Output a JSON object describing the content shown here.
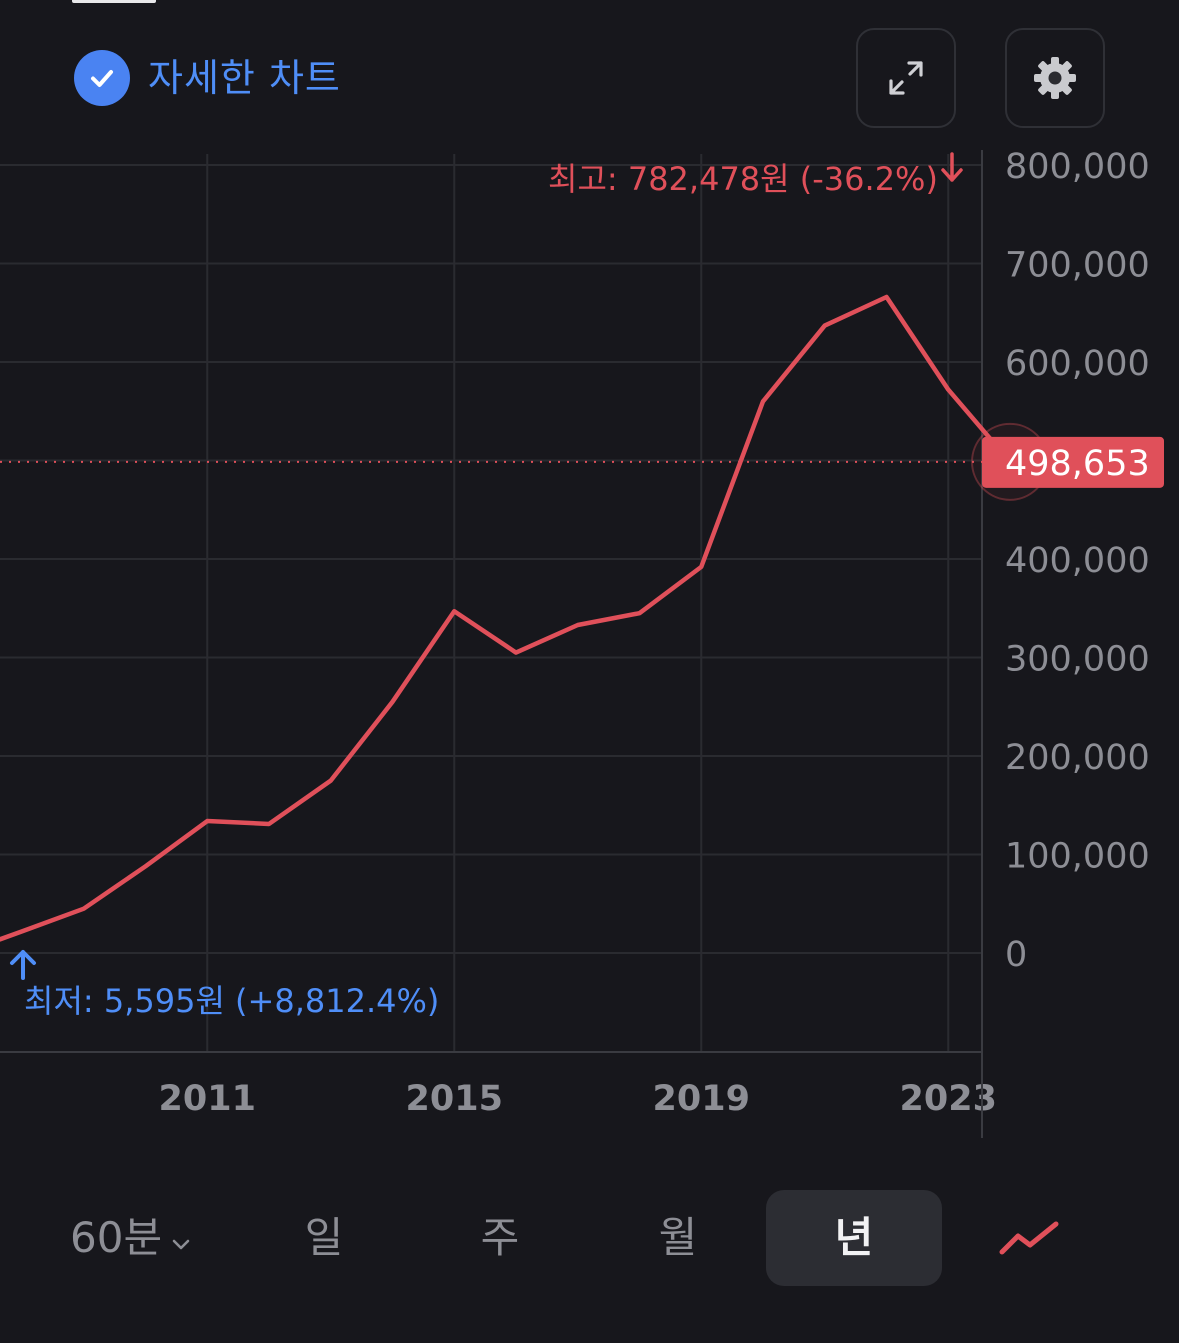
{
  "header": {
    "title": "자세한 차트"
  },
  "colors": {
    "background": "#17171c",
    "accent_blue": "#4f8ef7",
    "line_red": "#e0505a",
    "label_red_bg": "#e0505a",
    "grid": "#2a2b30",
    "axis_text": "#8d8e95"
  },
  "chart_data": {
    "type": "line",
    "x": [
      "2008",
      "2009",
      "2010",
      "2011",
      "2012",
      "2013",
      "2014",
      "2015",
      "2016",
      "2017",
      "2018",
      "2019",
      "2020",
      "2021",
      "2022",
      "2023",
      "2024"
    ],
    "series": [
      {
        "values": [
          22000,
          45000,
          88000,
          134000,
          131000,
          175000,
          255000,
          347000,
          305000,
          333000,
          345000,
          392000,
          560000,
          637000,
          666000,
          572000,
          498653
        ]
      }
    ],
    "y_ticks": [
      "800,000",
      "700,000",
      "600,000",
      "500,000",
      "400,000",
      "300,000",
      "200,000",
      "100,000",
      "0"
    ],
    "y_tick_values": [
      800000,
      700000,
      600000,
      500000,
      400000,
      300000,
      200000,
      100000,
      0
    ],
    "x_ticks": [
      "2011",
      "2015",
      "2019",
      "2023"
    ],
    "ylim": [
      0,
      800000
    ],
    "current_value": 498653,
    "current_label": "498,653",
    "high_label": "최고: 782,478원 (-36.2%)",
    "low_label": "최저: 5,595원 (+8,812.4%)",
    "grid": true
  },
  "periods": {
    "min60": "60분",
    "day": "일",
    "week": "주",
    "month": "월",
    "year": "년"
  }
}
